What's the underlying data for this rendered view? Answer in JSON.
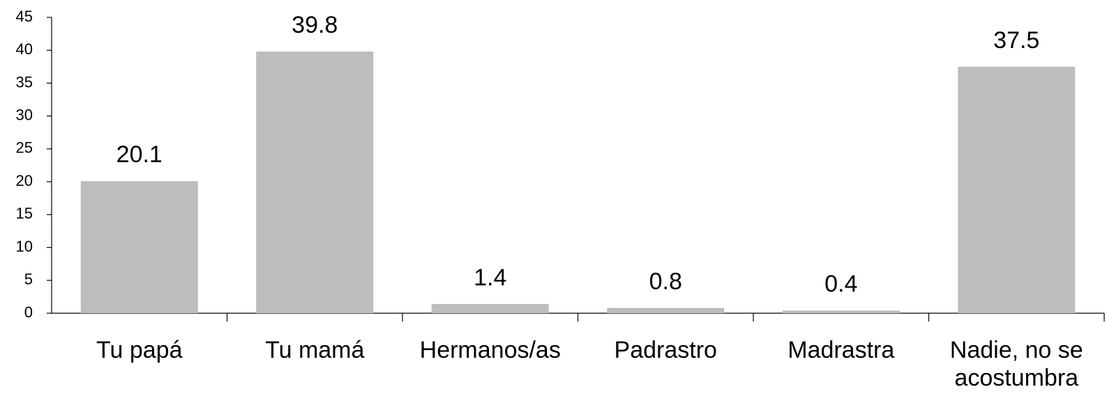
{
  "chart_data": {
    "type": "bar",
    "categories": [
      "Tu papá",
      "Tu mamá",
      "Hermanos/as",
      "Padrastro",
      "Madrastra",
      "Nadie, no se acostumbra"
    ],
    "values": [
      20.1,
      39.8,
      1.4,
      0.8,
      0.4,
      37.5
    ],
    "color": "#bdbdbd",
    "ylim": [
      0,
      45
    ],
    "yticks": [
      0,
      5,
      10,
      15,
      20,
      25,
      30,
      35,
      40,
      45
    ],
    "grid": false
  }
}
